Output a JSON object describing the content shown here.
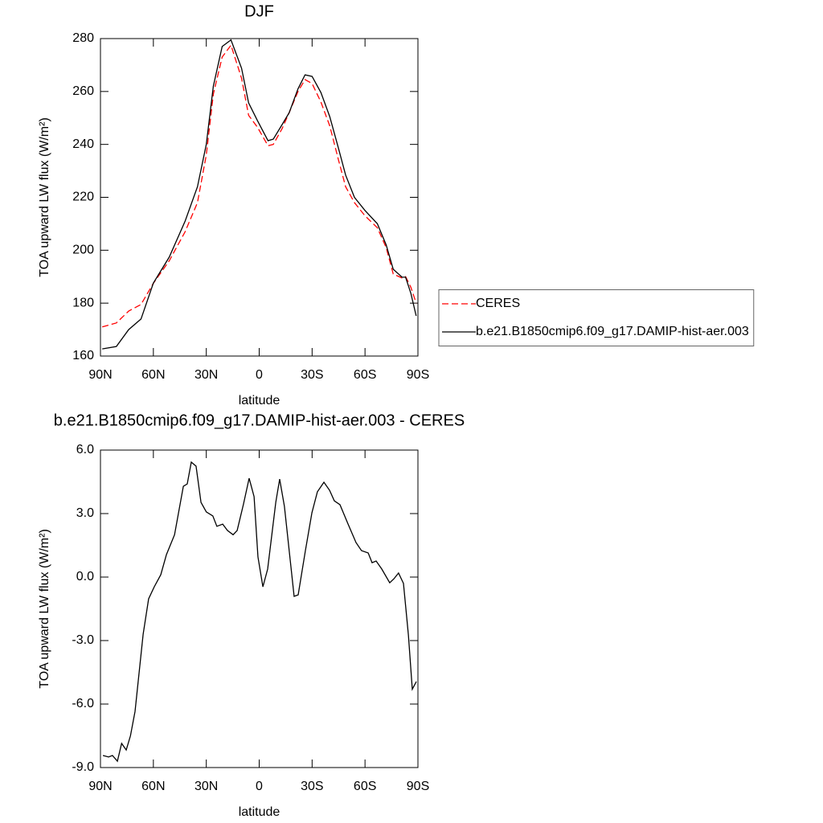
{
  "chart_data": [
    {
      "type": "line",
      "title": "DJF",
      "xlabel": "latitude",
      "ylabel": "TOA upward LW flux (W/m²)",
      "xlim": [
        90,
        -90
      ],
      "xticks": [
        {
          "value": 90,
          "label": "90N"
        },
        {
          "value": 60,
          "label": "60N"
        },
        {
          "value": 30,
          "label": "30N"
        },
        0,
        {
          "value": -30,
          "label": "30S"
        },
        {
          "value": -60,
          "label": "60S"
        },
        {
          "value": -90,
          "label": "90S"
        }
      ],
      "ylim": [
        160,
        280
      ],
      "yticks": [
        160,
        180,
        200,
        220,
        240,
        260,
        280
      ],
      "legend": "right",
      "x": [
        89,
        81,
        74,
        67,
        60,
        51,
        42,
        35,
        30,
        26,
        21,
        16,
        10,
        6,
        1,
        -5,
        -8,
        -13,
        -17,
        -22,
        -26,
        -30,
        -35,
        -40,
        -45,
        -49,
        -54,
        -60,
        -67,
        -72,
        -76,
        -81,
        -83,
        -86,
        -89
      ],
      "series": [
        {
          "name": "CERES",
          "color": "#ff0000",
          "linestyle": "dashed",
          "values": [
            171,
            172.5,
            177,
            179.5,
            187.5,
            196,
            207,
            218,
            236,
            259,
            273,
            277.5,
            265,
            251,
            246.5,
            239.5,
            240,
            246,
            252,
            260,
            264.5,
            263,
            256,
            247,
            234,
            224,
            218,
            213,
            208.5,
            201,
            191,
            189.5,
            190,
            186,
            180
          ]
        },
        {
          "name": "b.e21.B1850cmip6.f09_g17.DAMIP-hist-aer.003",
          "color": "#000000",
          "linestyle": "solid",
          "values": [
            162.7,
            163.6,
            170,
            174,
            187.6,
            197.4,
            211,
            224,
            240,
            262,
            277,
            279.5,
            268.8,
            255.7,
            249,
            241.4,
            242,
            247.5,
            252,
            261,
            266.3,
            265.7,
            259.6,
            250.5,
            238.4,
            228.4,
            220,
            215,
            210,
            202,
            192.8,
            189.8,
            189.8,
            183.7,
            175.2
          ]
        }
      ]
    },
    {
      "type": "line",
      "title": "b.e21.B1850cmip6.f09_g17.DAMIP-hist-aer.003 - CERES",
      "xlabel": "latitude",
      "ylabel": "TOA upward LW flux (W/m²)",
      "xlim": [
        90,
        -90
      ],
      "xticks": [
        {
          "value": 90,
          "label": "90N"
        },
        {
          "value": 60,
          "label": "60N"
        },
        {
          "value": 30,
          "label": "30N"
        },
        0,
        {
          "value": -30,
          "label": "30S"
        },
        {
          "value": -60,
          "label": "60S"
        },
        {
          "value": -90,
          "label": "90S"
        }
      ],
      "ylim": [
        -9,
        6
      ],
      "yticks": [
        {
          "value": -9,
          "label": "-9.0"
        },
        {
          "value": -6,
          "label": "-6.0"
        },
        {
          "value": -3,
          "label": "-3.0"
        },
        {
          "value": 0,
          "label": "0.0"
        },
        {
          "value": 3,
          "label": "3.0"
        },
        {
          "value": 6,
          "label": "6.0"
        }
      ],
      "x": [
        88.6,
        85.4,
        83.2,
        80.4,
        78,
        75.4,
        73,
        70.4,
        65.8,
        62.7,
        59.5,
        55.8,
        52.6,
        48,
        43,
        40.8,
        38.5,
        35.8,
        33,
        30,
        26.3,
        24,
        20.7,
        18,
        14.8,
        12.5,
        8.9,
        5.7,
        2.9,
        0.7,
        -2.1,
        -4.8,
        -9.4,
        -11.6,
        -14.3,
        -19.8,
        -22.1,
        -26.2,
        -29.9,
        -33,
        -36.7,
        -39.9,
        -42.6,
        -45.8,
        -50.4,
        -54.9,
        -58,
        -61.8,
        -64,
        -66.3,
        -69.5,
        -74,
        -76.4,
        -79,
        -81.8,
        -84.6,
        -86.8,
        -89.1
      ],
      "series": [
        {
          "color": "#000000",
          "linestyle": "solid",
          "values": [
            -8.43,
            -8.5,
            -8.43,
            -8.7,
            -7.86,
            -8.17,
            -7.5,
            -6.35,
            -2.7,
            -1.03,
            -0.46,
            0.11,
            1.06,
            2.0,
            4.29,
            4.4,
            5.43,
            5.24,
            3.53,
            3.08,
            2.89,
            2.4,
            2.5,
            2.2,
            2.0,
            2.2,
            3.45,
            4.67,
            3.8,
            0.95,
            -0.46,
            0.38,
            3.53,
            4.63,
            3.34,
            -0.91,
            -0.84,
            1.25,
            3.04,
            4.03,
            4.48,
            4.1,
            3.6,
            3.42,
            2.5,
            1.63,
            1.25,
            1.14,
            0.68,
            0.76,
            0.38,
            -0.27,
            -0.08,
            0.19,
            -0.3,
            -2.74,
            -5.3,
            -4.94
          ]
        }
      ]
    }
  ]
}
